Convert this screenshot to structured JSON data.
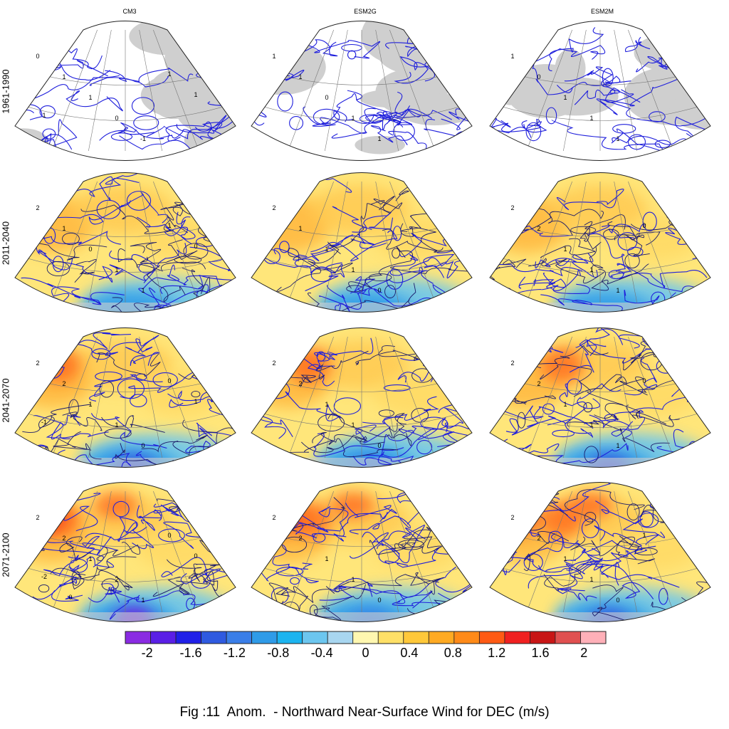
{
  "figure": {
    "caption": "Fig :11  Anom.  - Northward Near-Surface Wind for DEC (m/s)"
  },
  "columns": [
    "CM3",
    "ESM2G",
    "ESM2M"
  ],
  "rows": [
    "1961-1990",
    "2011-2040",
    "2041-2070",
    "2071-2100"
  ],
  "colorbar": {
    "colors": [
      "#8a2be2",
      "#5a1fe6",
      "#2020e8",
      "#2f5ae0",
      "#3a7ee8",
      "#2f9be8",
      "#1cb4f0",
      "#6cc6ef",
      "#a8d6f0",
      "#fff7b0",
      "#ffe067",
      "#ffc83a",
      "#ffaa22",
      "#ff8a18",
      "#ff5a14",
      "#f02020",
      "#c81616",
      "#e05050",
      "#ffb0b8"
    ],
    "tick_labels": [
      "-2",
      "-1.6",
      "-1.2",
      "-0.8",
      "-0.4",
      "0",
      "0.4",
      "0.8",
      "1.2",
      "1.6",
      "2"
    ],
    "tick_values": [
      -2,
      -1.6,
      -1.2,
      -0.8,
      -0.4,
      0,
      0.4,
      0.8,
      1.2,
      1.6,
      2
    ]
  },
  "panels": [
    {
      "row": "1961-1990",
      "col": "CM3",
      "type": "contours",
      "contour_labels": [
        "0",
        "1",
        "1",
        "0",
        "-1",
        "1",
        "1",
        "1"
      ]
    },
    {
      "row": "1961-1990",
      "col": "ESM2G",
      "type": "contours",
      "contour_labels": [
        "1",
        "1",
        "0",
        "1",
        "1"
      ]
    },
    {
      "row": "1961-1990",
      "col": "ESM2M",
      "type": "contours",
      "contour_labels": [
        "1",
        "0",
        "1",
        "1",
        "1"
      ]
    },
    {
      "row": "2011-2040",
      "col": "CM3",
      "type": "filled",
      "contour_labels": [
        "2",
        "1",
        "0",
        "1",
        "1",
        "1",
        "0"
      ]
    },
    {
      "row": "2011-2040",
      "col": "ESM2G",
      "type": "filled",
      "contour_labels": [
        "2",
        "1",
        "1",
        "1",
        "0"
      ]
    },
    {
      "row": "2011-2040",
      "col": "ESM2M",
      "type": "filled",
      "contour_labels": [
        "2",
        "2",
        "1",
        "1",
        "1",
        "0"
      ]
    },
    {
      "row": "2041-2070",
      "col": "CM3",
      "type": "filled",
      "contour_labels": [
        "2",
        "2",
        "1",
        "1",
        "0",
        "0",
        "1",
        "-1"
      ]
    },
    {
      "row": "2041-2070",
      "col": "ESM2G",
      "type": "filled",
      "contour_labels": [
        "2",
        "2",
        "1",
        "1",
        "0"
      ]
    },
    {
      "row": "2041-2070",
      "col": "ESM2M",
      "type": "filled",
      "contour_labels": [
        "2",
        "2",
        "1",
        "1",
        "1",
        "0"
      ]
    },
    {
      "row": "2071-2100",
      "col": "CM3",
      "type": "filled",
      "contour_labels": [
        "2",
        "2",
        "1",
        "2",
        "1",
        "0",
        "0",
        "-2",
        "0"
      ]
    },
    {
      "row": "2071-2100",
      "col": "ESM2G",
      "type": "filled",
      "contour_labels": [
        "2",
        "2",
        "1",
        "1",
        "0"
      ]
    },
    {
      "row": "2071-2100",
      "col": "ESM2M",
      "type": "filled",
      "contour_labels": [
        "2",
        "2",
        "1",
        "1",
        "0",
        "1"
      ]
    }
  ]
}
